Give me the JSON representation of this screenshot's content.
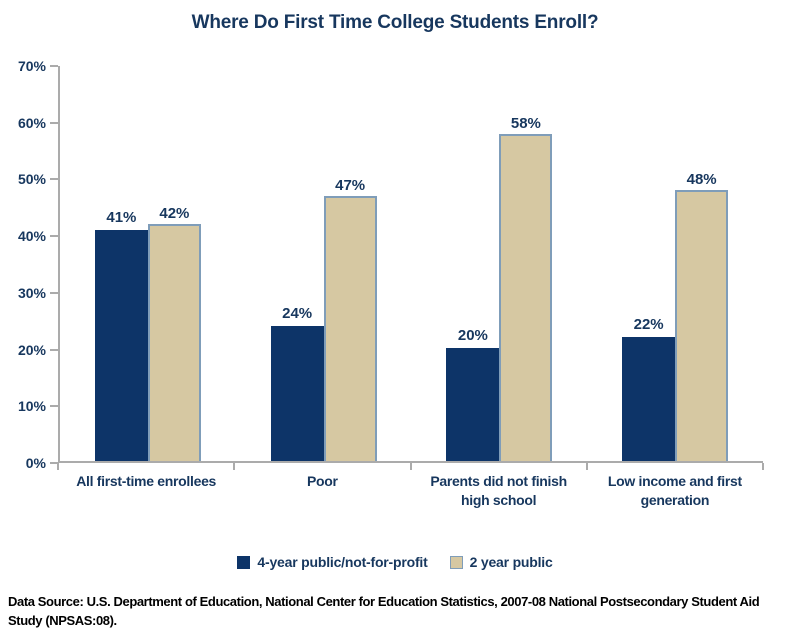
{
  "title": "Where Do First Time College Students Enroll?",
  "chart_data": {
    "type": "bar",
    "title": "Where Do First Time College Students Enroll?",
    "categories": [
      "All first-time enrollees",
      "Poor",
      "Parents did not finish high school",
      "Low income and first generation"
    ],
    "series": [
      {
        "name": "4-year public/not-for-profit",
        "values": [
          41,
          24,
          20,
          22
        ],
        "color": "#0D3468",
        "border": "#0D3468"
      },
      {
        "name": "2 year public",
        "values": [
          42,
          47,
          58,
          48
        ],
        "color": "#D6C8A2",
        "border": "#7F9DB9"
      }
    ],
    "value_suffix": "%",
    "xlabel": "",
    "ylabel": "",
    "ylim": [
      0,
      70
    ],
    "ytick_step": 10,
    "ytick_labels": [
      "0%",
      "10%",
      "20%",
      "30%",
      "40%",
      "50%",
      "60%",
      "70%"
    ],
    "grid": false,
    "legend_position": "bottom",
    "data_labels": true,
    "label_color": "#17375E",
    "axis_color": "#ABABAB",
    "background_color": "#FFFFFF"
  },
  "source": {
    "text": "Data Source: U.S. Department of Education, National Center for Education Statistics, 2007-08 National Postsecondary Student Aid Study (NPSAS:08)."
  }
}
